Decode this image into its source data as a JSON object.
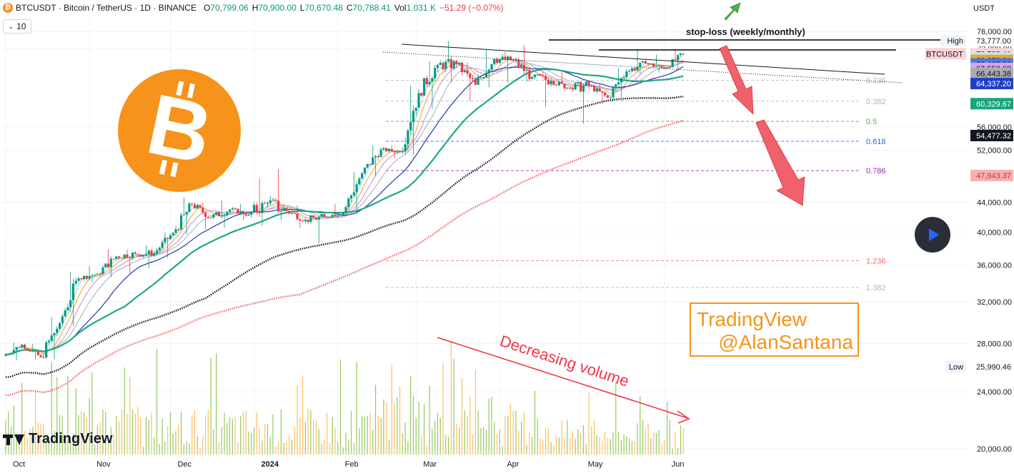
{
  "header": {
    "symbol": "BTCUSDT · Bitcoin / TetherUS · 1D · BINANCE",
    "open_label": "O",
    "open": "70,799.06",
    "high_label": "H",
    "high": "70,900.00",
    "low_label": "L",
    "low": "70,670.48",
    "close_label": "C",
    "close": "70,788.41",
    "vol_label": "Vol",
    "vol": "1.031 K",
    "change": "−51.29 (−0.07%)",
    "interval": "10",
    "currency": "USDT"
  },
  "colors": {
    "up": "#089981",
    "down": "#f23645",
    "bitcoin": "#f7931a",
    "fib_gray": "#b2b5be",
    "fib_green": "#4caf50",
    "fib_blue": "#2962ff",
    "fib_purple": "#9c27b0",
    "ma_teal": "#20a886",
    "ma_black": "#131722",
    "ma_red": "#f06e6e",
    "ma_blue": "#2237a8"
  },
  "icons": [
    "bitcoin-logo-icon",
    "green-arrow-up-icon",
    "red-arrow-down-icon",
    "play-button-icon",
    "tradingview-logo-icon"
  ],
  "annotations": {
    "stop_loss": "stop-loss (weekly/monthly)",
    "volume_note": "Decreasing volume",
    "author_line1": "TradingView",
    "author_line2": "@AlanSantana",
    "brand": "TradingView"
  },
  "chart_data": {
    "type": "candlestick",
    "x_range": [
      "2023-10-01",
      "2024-06-09"
    ],
    "x_ticks": [
      {
        "date": "2023-10-01",
        "label": "Oct"
      },
      {
        "date": "2023-11-01",
        "label": "Nov"
      },
      {
        "date": "2023-12-01",
        "label": "Dec"
      },
      {
        "date": "2024-01-01",
        "label": "2024"
      },
      {
        "date": "2024-02-01",
        "label": "Feb"
      },
      {
        "date": "2024-03-01",
        "label": "Mar"
      },
      {
        "date": "2024-04-01",
        "label": "Apr"
      },
      {
        "date": "2024-05-01",
        "label": "May"
      },
      {
        "date": "2024-06-01",
        "label": "Jun"
      }
    ],
    "y_scale": "log",
    "y_range": [
      19500,
      78500
    ],
    "y_ticks": [
      {
        "value": 76000,
        "label": "76,000.00"
      },
      {
        "value": 72000,
        "label": "72,000.00"
      },
      {
        "value": 56000,
        "label": "56,000.00"
      },
      {
        "value": 52000,
        "label": "52,000.00"
      },
      {
        "value": 44000,
        "label": "44,000.00"
      },
      {
        "value": 40000,
        "label": "40,000.00"
      },
      {
        "value": 36000,
        "label": "36,000.00"
      },
      {
        "value": 32000,
        "label": "32,000.00"
      },
      {
        "value": 28000,
        "label": "28,000.00"
      },
      {
        "value": 24000,
        "label": "24,000.00"
      },
      {
        "value": 20000,
        "label": "20,000.00"
      }
    ],
    "price_labels": [
      {
        "value": 73777,
        "label": "73,777.00",
        "tag": "High",
        "bg": "#ffffff",
        "fg": "#131722"
      },
      {
        "value": 70788.41,
        "label": "70,788.41",
        "tag": "BTCUSDT",
        "bg": "#fad4d6",
        "fg": "#131722"
      },
      {
        "value": 69853.64,
        "label": "69,853.64",
        "bg": "#bfe8f5",
        "fg": "#131722"
      },
      {
        "value": 69279.64,
        "label": "69,279.64",
        "bg": "#f7a21b",
        "fg": "#131722"
      },
      {
        "value": 68487.93,
        "label": "68,487.93",
        "bg": "#4a78f2",
        "fg": "#131722"
      },
      {
        "value": 67552.68,
        "label": "67,552.68",
        "bg": "#d7a6e8",
        "fg": "#131722"
      },
      {
        "value": 66443.38,
        "label": "66,443.38",
        "bg": "#a9acb3",
        "fg": "#131722"
      },
      {
        "value": 64337.2,
        "label": "64,337.20",
        "bg": "#1e3fc7",
        "fg": "#ffffff"
      },
      {
        "value": 60329.67,
        "label": "60,329.67",
        "bg": "#16a67a",
        "fg": "#ffffff"
      },
      {
        "value": 54477.32,
        "label": "54,477.32",
        "bg": "#131722",
        "fg": "#ffffff"
      },
      {
        "value": 47943.37,
        "label": "47,943.37",
        "bg": "#f6b1b1",
        "fg": "#d32f2f"
      },
      {
        "value": 25990.46,
        "label": "25,990.46",
        "tag": "Low",
        "bg": "#ffffff",
        "fg": "#131722"
      }
    ],
    "fib_levels": [
      {
        "ratio": "0.236",
        "price": 65000,
        "color": "#b2b5be"
      },
      {
        "ratio": "0.382",
        "price": 60800,
        "color": "#b2b5be"
      },
      {
        "ratio": "0.5",
        "price": 57000,
        "color": "#4caf50"
      },
      {
        "ratio": "0.618",
        "price": 53500,
        "color": "#2962ff"
      },
      {
        "ratio": "0.786",
        "price": 48700,
        "color": "#9c27b0"
      },
      {
        "ratio": "1.236",
        "price": 36500,
        "color": "#e57373"
      },
      {
        "ratio": "1.382",
        "price": 33500,
        "color": "#b2b5be"
      }
    ],
    "candles_weekly": [
      {
        "date": "2023-10-01",
        "o": 26900,
        "h": 28100,
        "l": 26500,
        "c": 27900
      },
      {
        "date": "2023-10-08",
        "o": 27900,
        "h": 28000,
        "l": 26600,
        "c": 26800
      },
      {
        "date": "2023-10-15",
        "o": 26800,
        "h": 30500,
        "l": 26600,
        "c": 29900
      },
      {
        "date": "2023-10-22",
        "o": 29900,
        "h": 35200,
        "l": 29600,
        "c": 34500
      },
      {
        "date": "2023-10-29",
        "o": 34500,
        "h": 35900,
        "l": 34000,
        "c": 35000
      },
      {
        "date": "2023-11-05",
        "o": 35000,
        "h": 37900,
        "l": 34600,
        "c": 37000
      },
      {
        "date": "2023-11-12",
        "o": 37000,
        "h": 37900,
        "l": 35000,
        "c": 37300
      },
      {
        "date": "2023-11-19",
        "o": 37300,
        "h": 38400,
        "l": 35600,
        "c": 37400
      },
      {
        "date": "2023-11-26",
        "o": 37400,
        "h": 40000,
        "l": 36800,
        "c": 39900
      },
      {
        "date": "2023-12-03",
        "o": 39900,
        "h": 44700,
        "l": 39600,
        "c": 43700
      },
      {
        "date": "2023-12-10",
        "o": 43700,
        "h": 44000,
        "l": 40300,
        "c": 41900
      },
      {
        "date": "2023-12-17",
        "o": 41900,
        "h": 44300,
        "l": 40500,
        "c": 43000
      },
      {
        "date": "2023-12-24",
        "o": 43000,
        "h": 43800,
        "l": 41500,
        "c": 42300
      },
      {
        "date": "2023-12-31",
        "o": 42300,
        "h": 47500,
        "l": 40800,
        "c": 43900
      },
      {
        "date": "2024-01-07",
        "o": 43900,
        "h": 49000,
        "l": 41500,
        "c": 42800
      },
      {
        "date": "2024-01-14",
        "o": 42800,
        "h": 43600,
        "l": 40500,
        "c": 41600
      },
      {
        "date": "2024-01-21",
        "o": 41600,
        "h": 42100,
        "l": 38550,
        "c": 42000
      },
      {
        "date": "2024-01-28",
        "o": 42000,
        "h": 43800,
        "l": 41800,
        "c": 42600
      },
      {
        "date": "2024-02-04",
        "o": 42600,
        "h": 48500,
        "l": 42400,
        "c": 48300
      },
      {
        "date": "2024-02-11",
        "o": 48300,
        "h": 52800,
        "l": 47800,
        "c": 52100
      },
      {
        "date": "2024-02-18",
        "o": 52100,
        "h": 52900,
        "l": 50600,
        "c": 51700
      },
      {
        "date": "2024-02-25",
        "o": 51700,
        "h": 64000,
        "l": 51200,
        "c": 62400
      },
      {
        "date": "2024-03-03",
        "o": 62400,
        "h": 69200,
        "l": 59200,
        "c": 68300
      },
      {
        "date": "2024-03-10",
        "o": 68300,
        "h": 73777,
        "l": 64500,
        "c": 68400
      },
      {
        "date": "2024-03-17",
        "o": 68400,
        "h": 68900,
        "l": 60800,
        "c": 64100
      },
      {
        "date": "2024-03-24",
        "o": 64100,
        "h": 71700,
        "l": 63500,
        "c": 69600
      },
      {
        "date": "2024-03-31",
        "o": 69600,
        "h": 71300,
        "l": 64500,
        "c": 69300
      },
      {
        "date": "2024-04-07",
        "o": 69300,
        "h": 72800,
        "l": 64700,
        "c": 65700
      },
      {
        "date": "2024-04-14",
        "o": 65700,
        "h": 66900,
        "l": 59700,
        "c": 64900
      },
      {
        "date": "2024-04-21",
        "o": 64900,
        "h": 67200,
        "l": 62800,
        "c": 63400
      },
      {
        "date": "2024-04-28",
        "o": 63400,
        "h": 64700,
        "l": 56500,
        "c": 63900
      },
      {
        "date": "2024-05-05",
        "o": 63900,
        "h": 64400,
        "l": 60200,
        "c": 61500
      },
      {
        "date": "2024-05-12",
        "o": 61500,
        "h": 67700,
        "l": 60700,
        "c": 66900
      },
      {
        "date": "2024-05-19",
        "o": 66900,
        "h": 71950,
        "l": 66300,
        "c": 68600
      },
      {
        "date": "2024-05-26",
        "o": 68600,
        "h": 70600,
        "l": 66600,
        "c": 67500
      },
      {
        "date": "2024-06-02",
        "o": 67500,
        "h": 71900,
        "l": 67200,
        "c": 70788
      }
    ],
    "volume_trend": "Decreasing volume",
    "colors_note": {
      "green": "#089981",
      "red": "#f23645"
    }
  }
}
